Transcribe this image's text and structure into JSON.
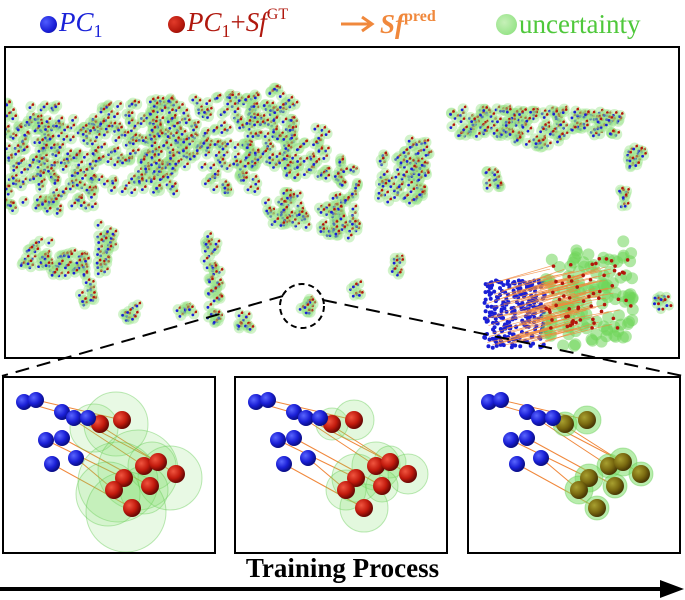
{
  "legend": {
    "pc1_main": "PC",
    "pc1_sub": "1",
    "pc1sf_main": "PC",
    "pc1sf_sub": "1",
    "pc1sf_plus": "+",
    "pc1sf_sf": "Sf",
    "pc1sf_sup": "GT",
    "sfpred_sf": "Sf",
    "sfpred_sup": "pred",
    "uncertainty": "uncertainty"
  },
  "caption": "Training Process",
  "colors": {
    "pc1_point": "#1a1fd6",
    "gt_point": "#b3170c",
    "flow_arrow": "#f0883c",
    "uncertainty": "#98e48a"
  }
}
